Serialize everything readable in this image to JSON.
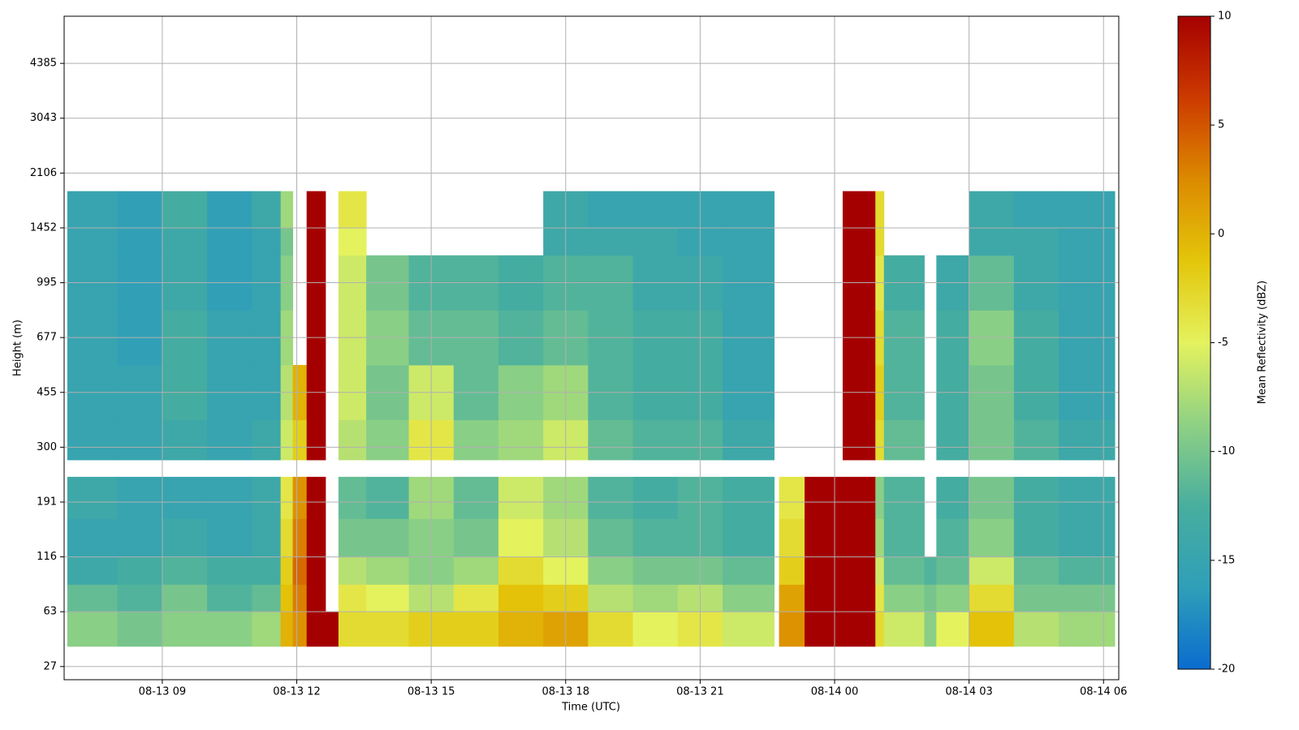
{
  "chart_data": {
    "type": "heatmap",
    "xlabel": "Time (UTC)",
    "ylabel": "Height (m)",
    "colorbar_label": "Mean Reflectivity (dBZ)",
    "xlim": [
      6.81,
      30.34
    ],
    "ylim": [
      -0.24,
      11.86
    ],
    "xticks": [
      {
        "value": 9,
        "label": "08-13 09"
      },
      {
        "value": 12,
        "label": "08-13 12"
      },
      {
        "value": 15,
        "label": "08-13 15"
      },
      {
        "value": 18,
        "label": "08-13 18"
      },
      {
        "value": 21,
        "label": "08-13 21"
      },
      {
        "value": 24,
        "label": "08-14 00"
      },
      {
        "value": 27,
        "label": "08-14 03"
      },
      {
        "value": 30,
        "label": "08-14 06"
      }
    ],
    "yticks": [
      {
        "value": 0,
        "label": "27"
      },
      {
        "value": 1,
        "label": "63"
      },
      {
        "value": 2,
        "label": "116"
      },
      {
        "value": 3,
        "label": "191"
      },
      {
        "value": 4,
        "label": "300"
      },
      {
        "value": 5,
        "label": "455"
      },
      {
        "value": 6,
        "label": "677"
      },
      {
        "value": 7,
        "label": "995"
      },
      {
        "value": 8,
        "label": "1452"
      },
      {
        "value": 9,
        "label": "2106"
      },
      {
        "value": 10,
        "label": "3043"
      },
      {
        "value": 11,
        "label": "4385"
      }
    ],
    "grid": true,
    "clim": [
      -20,
      10
    ],
    "cticks": [
      -20,
      -15,
      -10,
      -5,
      0,
      5,
      10
    ],
    "colormap": [
      "#0a6ccf",
      "#2f9fb8",
      "#48ae9e",
      "#8fd184",
      "#e4f25e",
      "#e3c60a",
      "#dc8a00",
      "#cc3a00",
      "#a50000"
    ],
    "x_edges": [
      6.88,
      8,
      9,
      10,
      11,
      11.64,
      11.91,
      12.22,
      12.64,
      12.93,
      13.55,
      14.5,
      15.5,
      16.5,
      17.5,
      18.5,
      19.5,
      20.5,
      21.5,
      22.65,
      22.76,
      23.33,
      24.18,
      24.91,
      25.1,
      26.0,
      26.27,
      27,
      28,
      29,
      30.25
    ],
    "y_edges": [
      0.37,
      1.0,
      1.5,
      2.0,
      2.7,
      3.46,
      3.77,
      4.5,
      5.5,
      6.5,
      7.5,
      8.0,
      8.67
    ],
    "z": [
      [
        -9,
        -10,
        -9,
        -9,
        -8,
        0,
        2,
        10,
        10,
        -3,
        -3,
        -2,
        -2,
        0,
        1,
        -3,
        -5,
        -4,
        -6,
        null,
        2,
        10,
        10,
        -3,
        -6,
        -9,
        -5,
        -1,
        -7,
        -8
      ],
      [
        -11,
        -12,
        -10,
        -12,
        -11,
        -1,
        3,
        10,
        null,
        -4,
        -5,
        -7,
        -4,
        -1,
        -2,
        -7,
        -8,
        -7,
        -9,
        null,
        1,
        10,
        10,
        -4,
        -9,
        -10,
        -9,
        -3,
        -10,
        -10
      ],
      [
        -14,
        -13,
        -12,
        -13,
        -13,
        -2,
        4,
        10,
        null,
        -7,
        -8,
        -9,
        -8,
        -3,
        -5,
        -9,
        -10,
        -10,
        -11,
        null,
        -2,
        10,
        10,
        -6,
        -11,
        -12,
        -11,
        -6,
        -11,
        -12
      ],
      [
        -15,
        -15,
        -14,
        -15,
        -14,
        -3,
        3,
        10,
        null,
        -10,
        -10,
        -9,
        -10,
        -5,
        -7,
        -11,
        -12,
        -12,
        -13,
        null,
        -3,
        10,
        10,
        -8,
        -12,
        null,
        -12,
        -9,
        -13,
        -14
      ],
      [
        -14,
        -15,
        -15,
        -15,
        -14,
        -4,
        2,
        10,
        null,
        -11,
        -12,
        -8,
        -11,
        -6,
        -8,
        -12,
        -13,
        -12,
        -13,
        null,
        -4,
        10,
        10,
        -9,
        -12,
        null,
        -13,
        -10,
        -13,
        -14
      ],
      [
        null,
        null,
        null,
        null,
        null,
        null,
        null,
        null,
        null,
        null,
        null,
        null,
        null,
        null,
        null,
        null,
        null,
        null,
        null,
        null,
        null,
        null,
        null,
        null,
        null,
        null,
        null,
        null,
        null,
        null
      ],
      [
        -15,
        -15,
        -14,
        -15,
        -14,
        -6,
        -2,
        10,
        null,
        -7,
        -9,
        -4,
        -9,
        -8,
        -6,
        -11,
        -12,
        -12,
        -14,
        null,
        null,
        null,
        10,
        -3,
        -11,
        null,
        -13,
        -10,
        -12,
        -14
      ],
      [
        -15,
        -15,
        -13,
        -15,
        -15,
        -7,
        0,
        10,
        null,
        -6,
        -10,
        -6,
        -11,
        -9,
        -8,
        -12,
        -13,
        -13,
        -15,
        null,
        null,
        null,
        10,
        -2,
        -12,
        null,
        -13,
        -10,
        -13,
        -15
      ],
      [
        -15,
        -16,
        -13,
        -15,
        -15,
        -8,
        null,
        10,
        null,
        -6,
        -9,
        -11,
        -11,
        -12,
        -11,
        -12,
        -13,
        -13,
        -15,
        null,
        null,
        null,
        10,
        -3,
        -12,
        null,
        -13,
        -9,
        -13,
        -15
      ],
      [
        -15,
        -16,
        -14,
        -16,
        -15,
        -9,
        null,
        10,
        null,
        -6,
        -10,
        -12,
        -12,
        -13,
        -12,
        -12,
        -14,
        -14,
        -15,
        null,
        null,
        null,
        10,
        -4,
        -13,
        null,
        -14,
        -11,
        -14,
        -15
      ],
      [
        -15,
        -16,
        -14,
        -16,
        -15,
        -10,
        null,
        10,
        null,
        -5,
        null,
        null,
        null,
        null,
        -14,
        -14,
        -14,
        -15,
        -15,
        null,
        null,
        null,
        10,
        -3,
        null,
        null,
        null,
        -14,
        -14,
        -15
      ],
      [
        -15,
        -16,
        -13,
        -16,
        -14,
        -8,
        null,
        10,
        null,
        -4,
        null,
        null,
        null,
        null,
        -14,
        -15,
        -15,
        -15,
        -15,
        null,
        null,
        null,
        10,
        -3,
        null,
        null,
        null,
        -14,
        -15,
        -15
      ]
    ]
  }
}
